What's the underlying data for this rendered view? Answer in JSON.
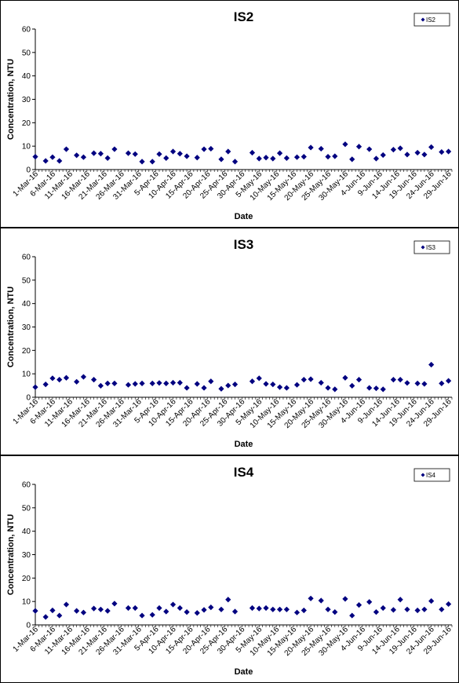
{
  "chart_data": [
    {
      "type": "scatter",
      "title": "IS2",
      "xlabel": "Date",
      "ylabel": "Concentration, NTU",
      "xlim": [
        "2016-03-01",
        "2016-06-30"
      ],
      "ylim": [
        0,
        60
      ],
      "yticks": [
        0,
        10,
        20,
        30,
        40,
        50,
        60
      ],
      "xtick_labels": [
        "1-Mar-16",
        "6-Mar-16",
        "11-Mar-16",
        "16-Mar-16",
        "21-Mar-16",
        "26-Mar-16",
        "31-Mar-16",
        "5-Apr-16",
        "10-Apr-16",
        "15-Apr-16",
        "20-Apr-16",
        "25-Apr-16",
        "30-Apr-16",
        "5-May-16",
        "10-May-16",
        "15-May-16",
        "20-May-16",
        "25-May-16",
        "30-May-16",
        "4-Jun-16",
        "9-Jun-16",
        "14-Jun-16",
        "19-Jun-16",
        "24-Jun-16",
        "29-Jun-16"
      ],
      "grid": false,
      "legend_position": "top-right",
      "marker_color": "#000080",
      "series": [
        {
          "name": "IS2",
          "points": [
            [
              "2016-03-01",
              5.5
            ],
            [
              "2016-03-04",
              3.7
            ],
            [
              "2016-03-06",
              5.3
            ],
            [
              "2016-03-08",
              3.7
            ],
            [
              "2016-03-10",
              8.7
            ],
            [
              "2016-03-13",
              6.1
            ],
            [
              "2016-03-15",
              5.3
            ],
            [
              "2016-03-18",
              7.0
            ],
            [
              "2016-03-20",
              6.8
            ],
            [
              "2016-03-22",
              4.9
            ],
            [
              "2016-03-24",
              8.7
            ],
            [
              "2016-03-28",
              7.0
            ],
            [
              "2016-03-30",
              6.6
            ],
            [
              "2016-04-01",
              3.4
            ],
            [
              "2016-04-04",
              3.4
            ],
            [
              "2016-04-06",
              6.6
            ],
            [
              "2016-04-08",
              4.9
            ],
            [
              "2016-04-10",
              7.7
            ],
            [
              "2016-04-12",
              6.8
            ],
            [
              "2016-04-14",
              5.7
            ],
            [
              "2016-04-17",
              5.1
            ],
            [
              "2016-04-19",
              8.7
            ],
            [
              "2016-04-21",
              8.9
            ],
            [
              "2016-04-24",
              4.4
            ],
            [
              "2016-04-26",
              7.7
            ],
            [
              "2016-04-28",
              3.4
            ],
            [
              "2016-05-03",
              7.2
            ],
            [
              "2016-05-05",
              4.7
            ],
            [
              "2016-05-07",
              5.1
            ],
            [
              "2016-05-09",
              4.7
            ],
            [
              "2016-05-11",
              7.0
            ],
            [
              "2016-05-13",
              4.9
            ],
            [
              "2016-05-16",
              5.3
            ],
            [
              "2016-05-18",
              5.5
            ],
            [
              "2016-05-20",
              9.4
            ],
            [
              "2016-05-23",
              8.9
            ],
            [
              "2016-05-25",
              5.5
            ],
            [
              "2016-05-27",
              5.7
            ],
            [
              "2016-05-30",
              10.8
            ],
            [
              "2016-06-01",
              4.4
            ],
            [
              "2016-06-03",
              9.8
            ],
            [
              "2016-06-06",
              8.7
            ],
            [
              "2016-06-08",
              4.7
            ],
            [
              "2016-06-10",
              6.2
            ],
            [
              "2016-06-13",
              8.5
            ],
            [
              "2016-06-15",
              9.1
            ],
            [
              "2016-06-17",
              6.4
            ],
            [
              "2016-06-20",
              7.2
            ],
            [
              "2016-06-22",
              6.4
            ],
            [
              "2016-06-24",
              9.6
            ],
            [
              "2016-06-27",
              7.5
            ],
            [
              "2016-06-29",
              7.7
            ]
          ]
        }
      ]
    },
    {
      "type": "scatter",
      "title": "IS3",
      "xlabel": "Date",
      "ylabel": "Concentration, NTU",
      "xlim": [
        "2016-03-01",
        "2016-06-30"
      ],
      "ylim": [
        0,
        60
      ],
      "yticks": [
        0,
        10,
        20,
        30,
        40,
        50,
        60
      ],
      "xtick_labels": [
        "1-Mar-16",
        "6-Mar-16",
        "11-Mar-16",
        "16-Mar-16",
        "21-Mar-16",
        "26-Mar-16",
        "31-Mar-16",
        "5-Apr-16",
        "10-Apr-16",
        "15-Apr-16",
        "20-Apr-16",
        "25-Apr-16",
        "30-Apr-16",
        "5-May-16",
        "10-May-16",
        "15-May-16",
        "20-May-16",
        "25-May-16",
        "30-May-16",
        "4-Jun-16",
        "9-Jun-16",
        "14-Jun-16",
        "19-Jun-16",
        "24-Jun-16",
        "29-Jun-16"
      ],
      "grid": false,
      "legend_position": "top-right",
      "marker_color": "#000080",
      "series": [
        {
          "name": "IS3",
          "points": [
            [
              "2016-03-01",
              4.3
            ],
            [
              "2016-03-04",
              5.5
            ],
            [
              "2016-03-06",
              8.1
            ],
            [
              "2016-03-08",
              7.5
            ],
            [
              "2016-03-10",
              8.3
            ],
            [
              "2016-03-13",
              6.6
            ],
            [
              "2016-03-15",
              8.7
            ],
            [
              "2016-03-18",
              7.5
            ],
            [
              "2016-03-20",
              4.9
            ],
            [
              "2016-03-22",
              5.9
            ],
            [
              "2016-03-24",
              5.9
            ],
            [
              "2016-03-28",
              5.3
            ],
            [
              "2016-03-30",
              5.7
            ],
            [
              "2016-04-01",
              5.9
            ],
            [
              "2016-04-04",
              5.9
            ],
            [
              "2016-04-06",
              6.1
            ],
            [
              "2016-04-08",
              5.9
            ],
            [
              "2016-04-10",
              6.2
            ],
            [
              "2016-04-12",
              6.2
            ],
            [
              "2016-04-14",
              4.0
            ],
            [
              "2016-04-17",
              5.7
            ],
            [
              "2016-04-19",
              4.0
            ],
            [
              "2016-04-21",
              6.8
            ],
            [
              "2016-04-24",
              3.6
            ],
            [
              "2016-04-26",
              5.0
            ],
            [
              "2016-04-28",
              5.5
            ],
            [
              "2016-05-03",
              6.8
            ],
            [
              "2016-05-05",
              8.1
            ],
            [
              "2016-05-07",
              5.7
            ],
            [
              "2016-05-09",
              5.5
            ],
            [
              "2016-05-11",
              4.3
            ],
            [
              "2016-05-13",
              4.0
            ],
            [
              "2016-05-16",
              5.3
            ],
            [
              "2016-05-18",
              7.5
            ],
            [
              "2016-05-20",
              7.7
            ],
            [
              "2016-05-23",
              6.2
            ],
            [
              "2016-05-25",
              4.0
            ],
            [
              "2016-05-27",
              3.4
            ],
            [
              "2016-05-30",
              8.3
            ],
            [
              "2016-06-01",
              4.9
            ],
            [
              "2016-06-03",
              7.5
            ],
            [
              "2016-06-06",
              4.0
            ],
            [
              "2016-06-08",
              3.8
            ],
            [
              "2016-06-10",
              3.4
            ],
            [
              "2016-06-13",
              7.5
            ],
            [
              "2016-06-15",
              7.5
            ],
            [
              "2016-06-17",
              6.1
            ],
            [
              "2016-06-20",
              5.9
            ],
            [
              "2016-06-22",
              5.7
            ],
            [
              "2016-06-24",
              13.9
            ],
            [
              "2016-06-27",
              5.9
            ],
            [
              "2016-06-29",
              7.0
            ]
          ]
        }
      ]
    },
    {
      "type": "scatter",
      "title": "IS4",
      "xlabel": "Date",
      "ylabel": "Concentration, NTU",
      "xlim": [
        "2016-03-01",
        "2016-06-30"
      ],
      "ylim": [
        0,
        60
      ],
      "yticks": [
        0,
        10,
        20,
        30,
        40,
        50,
        60
      ],
      "xtick_labels": [
        "1-Mar-16",
        "6-Mar-16",
        "11-Mar-16",
        "16-Mar-16",
        "21-Mar-16",
        "26-Mar-16",
        "31-Mar-16",
        "5-Apr-16",
        "10-Apr-16",
        "15-Apr-16",
        "20-Apr-16",
        "25-Apr-16",
        "30-Apr-16",
        "5-May-16",
        "10-May-16",
        "15-May-16",
        "20-May-16",
        "25-May-16",
        "30-May-16",
        "4-Jun-16",
        "9-Jun-16",
        "14-Jun-16",
        "19-Jun-16",
        "24-Jun-16",
        "29-Jun-16"
      ],
      "grid": false,
      "legend_position": "top-right",
      "marker_color": "#000080",
      "series": [
        {
          "name": "IS4",
          "points": [
            [
              "2016-03-01",
              6.0
            ],
            [
              "2016-03-04",
              3.4
            ],
            [
              "2016-03-06",
              6.2
            ],
            [
              "2016-03-08",
              4.0
            ],
            [
              "2016-03-10",
              8.7
            ],
            [
              "2016-03-13",
              6.0
            ],
            [
              "2016-03-15",
              5.3
            ],
            [
              "2016-03-18",
              7.0
            ],
            [
              "2016-03-20",
              6.6
            ],
            [
              "2016-03-22",
              6.0
            ],
            [
              "2016-03-24",
              9.1
            ],
            [
              "2016-03-28",
              7.2
            ],
            [
              "2016-03-30",
              7.2
            ],
            [
              "2016-04-01",
              4.0
            ],
            [
              "2016-04-04",
              4.3
            ],
            [
              "2016-04-06",
              7.2
            ],
            [
              "2016-04-08",
              5.7
            ],
            [
              "2016-04-10",
              8.7
            ],
            [
              "2016-04-12",
              7.2
            ],
            [
              "2016-04-14",
              5.5
            ],
            [
              "2016-04-17",
              5.1
            ],
            [
              "2016-04-19",
              6.4
            ],
            [
              "2016-04-21",
              7.5
            ],
            [
              "2016-04-24",
              6.6
            ],
            [
              "2016-04-26",
              10.8
            ],
            [
              "2016-04-28",
              5.7
            ],
            [
              "2016-05-03",
              7.2
            ],
            [
              "2016-05-05",
              7.0
            ],
            [
              "2016-05-07",
              7.2
            ],
            [
              "2016-05-09",
              6.6
            ],
            [
              "2016-05-11",
              6.6
            ],
            [
              "2016-05-13",
              6.6
            ],
            [
              "2016-05-16",
              5.3
            ],
            [
              "2016-05-18",
              6.2
            ],
            [
              "2016-05-20",
              11.3
            ],
            [
              "2016-05-23",
              10.4
            ],
            [
              "2016-05-25",
              6.6
            ],
            [
              "2016-05-27",
              5.5
            ],
            [
              "2016-05-30",
              11.1
            ],
            [
              "2016-06-01",
              4.0
            ],
            [
              "2016-06-03",
              8.5
            ],
            [
              "2016-06-06",
              9.8
            ],
            [
              "2016-06-08",
              5.5
            ],
            [
              "2016-06-10",
              7.2
            ],
            [
              "2016-06-13",
              6.4
            ],
            [
              "2016-06-15",
              10.8
            ],
            [
              "2016-06-17",
              6.6
            ],
            [
              "2016-06-20",
              6.2
            ],
            [
              "2016-06-22",
              6.6
            ],
            [
              "2016-06-24",
              10.2
            ],
            [
              "2016-06-27",
              6.6
            ],
            [
              "2016-06-29",
              8.9
            ]
          ]
        }
      ]
    }
  ]
}
